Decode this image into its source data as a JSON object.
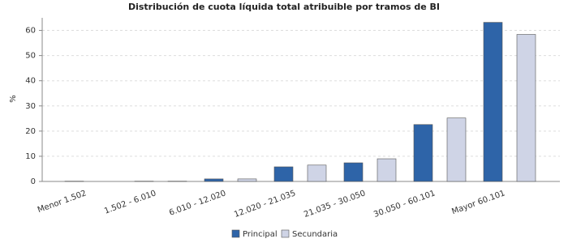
{
  "chart_data": {
    "type": "bar",
    "title": "Distribución de cuota líquida total atribuible por tramos de BI",
    "y_label": "%",
    "categories": [
      "Menor 1.502",
      "1.502 - 6.010",
      "6.010 - 12.020",
      "12.020 - 21.035",
      "21.035 - 30.050",
      "30.050 - 60.101",
      "Mayor 60.101"
    ],
    "series": [
      {
        "name": "Principal",
        "color": "#2e64a8",
        "values": [
          0.1,
          0.1,
          1.0,
          5.8,
          7.4,
          22.6,
          63.2
        ]
      },
      {
        "name": "Secundaria",
        "color": "#cfd4e6",
        "values": [
          0.0,
          0.1,
          1.0,
          6.5,
          9.0,
          25.2,
          58.4
        ]
      }
    ],
    "ylim": [
      0,
      65
    ],
    "yticks": [
      0,
      10,
      20,
      30,
      40,
      50,
      60
    ],
    "grid": true
  }
}
